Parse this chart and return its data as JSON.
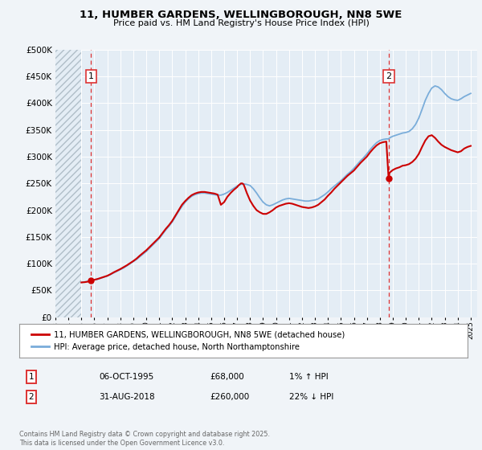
{
  "title_line1": "11, HUMBER GARDENS, WELLINGBOROUGH, NN8 5WE",
  "title_line2": "Price paid vs. HM Land Registry's House Price Index (HPI)",
  "bg_color": "#f0f4f8",
  "plot_bg_color": "#e4edf5",
  "grid_color": "#ffffff",
  "hpi_color": "#7aadda",
  "price_color": "#cc0000",
  "vline_color": "#dd3333",
  "marker1_x": 1995.75,
  "marker1_y": 68000,
  "marker2_x": 2018.67,
  "marker2_y": 260000,
  "annotation1": {
    "label": "1",
    "date": "06-OCT-1995",
    "price": "£68,000",
    "hpi": "1% ↑ HPI"
  },
  "annotation2": {
    "label": "2",
    "date": "31-AUG-2018",
    "price": "£260,000",
    "hpi": "22% ↓ HPI"
  },
  "legend_line1": "11, HUMBER GARDENS, WELLINGBOROUGH, NN8 5WE (detached house)",
  "legend_line2": "HPI: Average price, detached house, North Northamptonshire",
  "footer": "Contains HM Land Registry data © Crown copyright and database right 2025.\nThis data is licensed under the Open Government Licence v3.0.",
  "ylim": [
    0,
    500000
  ],
  "yticks": [
    0,
    50000,
    100000,
    150000,
    200000,
    250000,
    300000,
    350000,
    400000,
    450000,
    500000
  ],
  "xlim": [
    1993.0,
    2025.5
  ],
  "xticks": [
    1993,
    1994,
    1995,
    1996,
    1997,
    1998,
    1999,
    2000,
    2001,
    2002,
    2003,
    2004,
    2005,
    2006,
    2007,
    2008,
    2009,
    2010,
    2011,
    2012,
    2013,
    2014,
    2015,
    2016,
    2017,
    2018,
    2019,
    2020,
    2021,
    2022,
    2023,
    2024,
    2025
  ]
}
